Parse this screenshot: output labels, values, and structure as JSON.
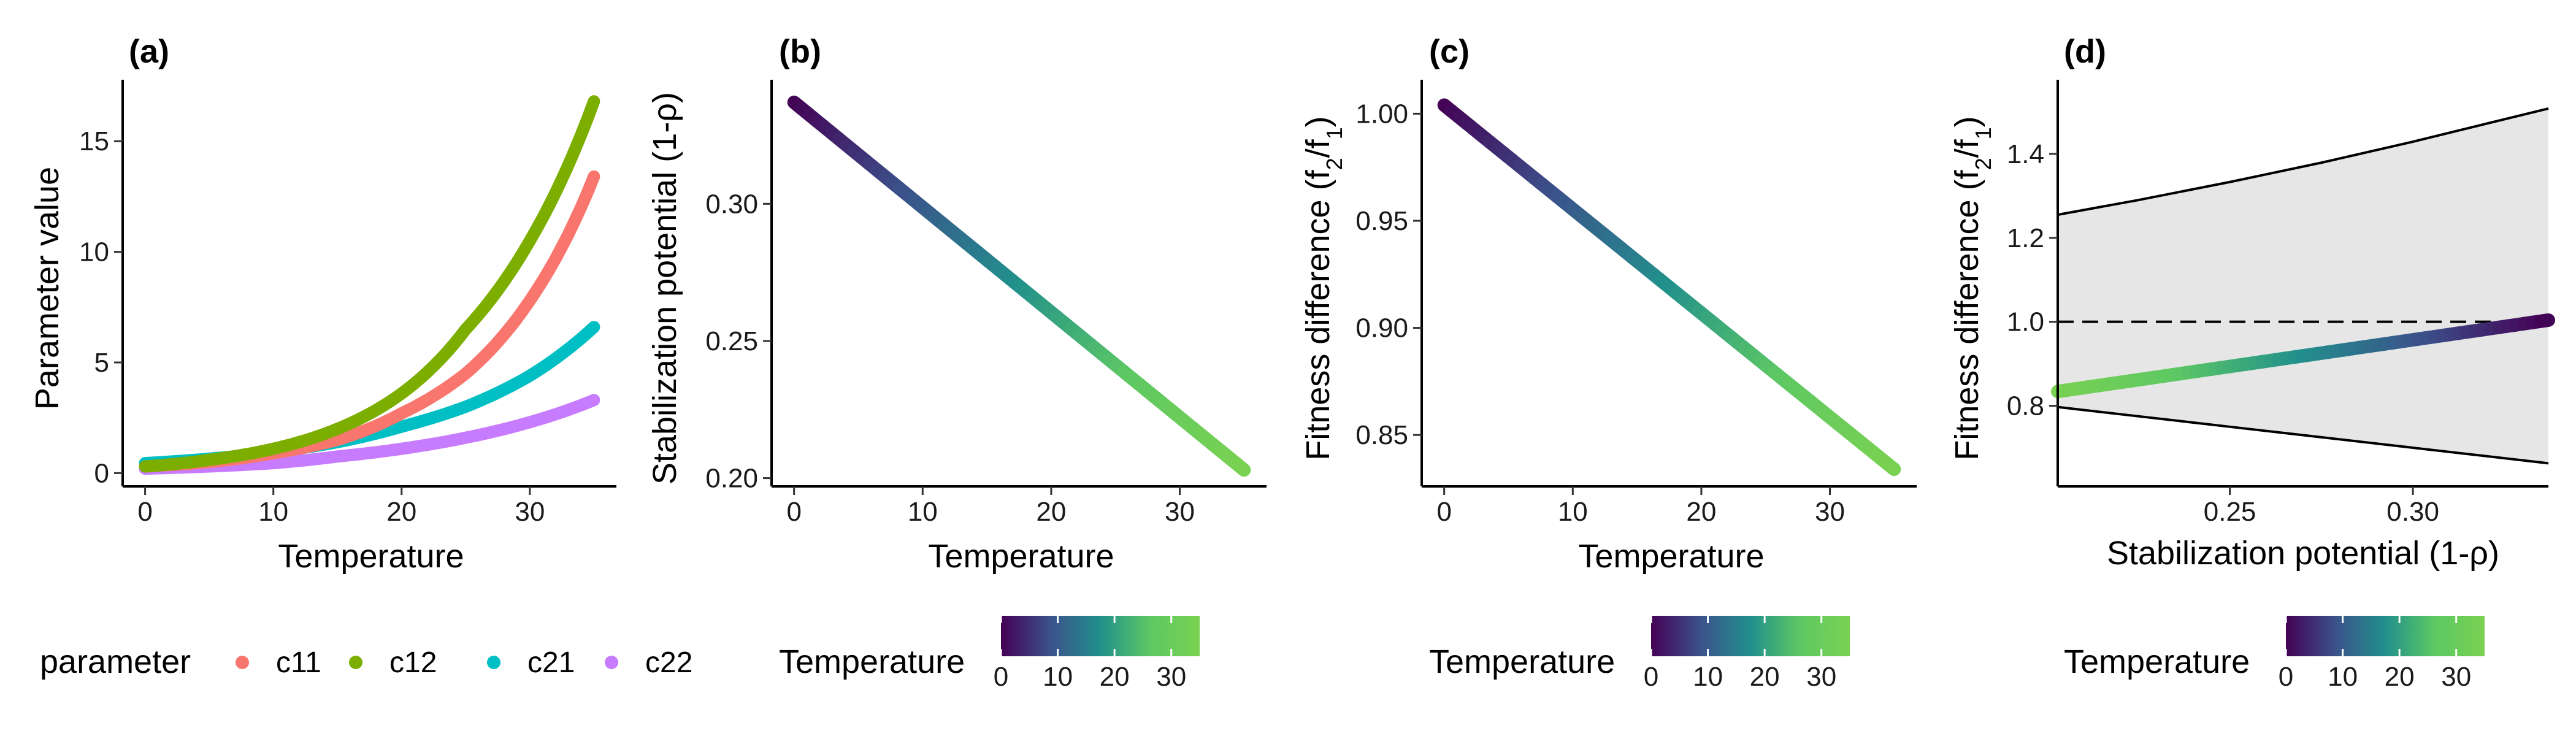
{
  "colors": {
    "c11": "#F8766D",
    "c12": "#7CAE00",
    "c21": "#00BFC4",
    "c22": "#C77CFF",
    "viridis": [
      "#440154",
      "#3B528B",
      "#21908C",
      "#5DC863",
      "#7AD151"
    ],
    "region_fill": "#e6e6e6"
  },
  "panels": {
    "a": {
      "tag": "(a)"
    },
    "b": {
      "tag": "(b)"
    },
    "c": {
      "tag": "(c)"
    },
    "d": {
      "tag": "(d)"
    }
  },
  "legends": {
    "parameter": {
      "title": "parameter",
      "items": [
        {
          "label": "c11",
          "color": "#F8766D"
        },
        {
          "label": "c12",
          "color": "#7CAE00"
        },
        {
          "label": "c21",
          "color": "#00BFC4"
        },
        {
          "label": "c22",
          "color": "#C77CFF"
        }
      ]
    },
    "temperature": {
      "title": "Temperature",
      "ticks": [
        "0",
        "10",
        "20",
        "30"
      ],
      "range": [
        0,
        35
      ]
    }
  },
  "chart_data": [
    {
      "id": "a",
      "type": "line",
      "title": "(a)",
      "xlabel": "Temperature",
      "ylabel": "Parameter value",
      "xlim": [
        -1.75,
        36.75
      ],
      "ylim": [
        -0.6,
        17.5
      ],
      "xticks": [
        0,
        10,
        20,
        30
      ],
      "yticks": [
        0,
        5,
        10,
        15
      ],
      "x": [
        0,
        5,
        10,
        15,
        20,
        25,
        30,
        35
      ],
      "series": [
        {
          "name": "c11",
          "values": [
            0.3,
            0.5,
            0.9,
            1.5,
            2.7,
            4.5,
            7.8,
            13.4
          ]
        },
        {
          "name": "c12",
          "values": [
            0.3,
            0.6,
            1.1,
            2.0,
            3.6,
            6.5,
            10.5,
            16.8
          ]
        },
        {
          "name": "c21",
          "values": [
            0.45,
            0.65,
            0.95,
            1.4,
            2.1,
            3.0,
            4.4,
            6.6
          ]
        },
        {
          "name": "c22",
          "values": [
            0.2,
            0.3,
            0.45,
            0.75,
            1.1,
            1.6,
            2.3,
            3.3
          ]
        }
      ],
      "legend": "bottom",
      "grid": false
    },
    {
      "id": "b",
      "type": "line",
      "title": "(b)",
      "xlabel": "Temperature",
      "ylabel": "Stabilization potential (1-ρ)",
      "xlim": [
        -1.75,
        36.75
      ],
      "ylim": [
        0.197,
        0.343
      ],
      "xticks": [
        0,
        10,
        20,
        30
      ],
      "yticks": [
        0.2,
        0.25,
        0.3
      ],
      "ytick_labels": [
        "0.20",
        "0.25",
        "0.30"
      ],
      "x": [
        0,
        35
      ],
      "values": [
        0.337,
        0.203
      ],
      "color_by": "Temperature",
      "legend": "bottom",
      "grid": false
    },
    {
      "id": "c",
      "type": "line",
      "title": "(c)",
      "xlabel": "Temperature",
      "ylabel": "Fitness difference (f2/f1)",
      "xlim": [
        -1.75,
        36.75
      ],
      "ylim": [
        0.826,
        1.013
      ],
      "xticks": [
        0,
        10,
        20,
        30
      ],
      "yticks": [
        0.85,
        0.9,
        0.95,
        1.0
      ],
      "ytick_labels": [
        "0.85",
        "0.90",
        "0.95",
        "1.00"
      ],
      "x": [
        0,
        35
      ],
      "values": [
        1.004,
        0.834
      ],
      "color_by": "Temperature",
      "legend": "bottom",
      "grid": false
    },
    {
      "id": "d",
      "type": "area",
      "title": "(d)",
      "xlabel": "Stabilization potential (1-ρ)",
      "ylabel": "Fitness difference (f2/f1)",
      "xlim": [
        0.203,
        0.337
      ],
      "ylim": [
        0.608,
        1.562
      ],
      "xticks": [
        0.25,
        0.3
      ],
      "xtick_labels": [
        "0.25",
        "0.30"
      ],
      "yticks": [
        0.8,
        1.0,
        1.2,
        1.4
      ],
      "ytick_labels": [
        "0.8",
        "1.0",
        "1.2",
        "1.4"
      ],
      "coexistence_region": {
        "x": [
          0.203,
          0.225,
          0.25,
          0.275,
          0.3,
          0.337
        ],
        "upper": [
          1.255,
          1.29,
          1.333,
          1.379,
          1.429,
          1.508
        ],
        "lower": [
          0.797,
          0.775,
          0.75,
          0.725,
          0.7,
          0.663
        ]
      },
      "reference_line": {
        "y": 1.0,
        "style": "dashed"
      },
      "trajectory": {
        "x": [
          0.203,
          0.337
        ],
        "y": [
          0.834,
          1.004
        ],
        "color_by": "Temperature"
      },
      "legend": "bottom",
      "grid": false
    }
  ]
}
